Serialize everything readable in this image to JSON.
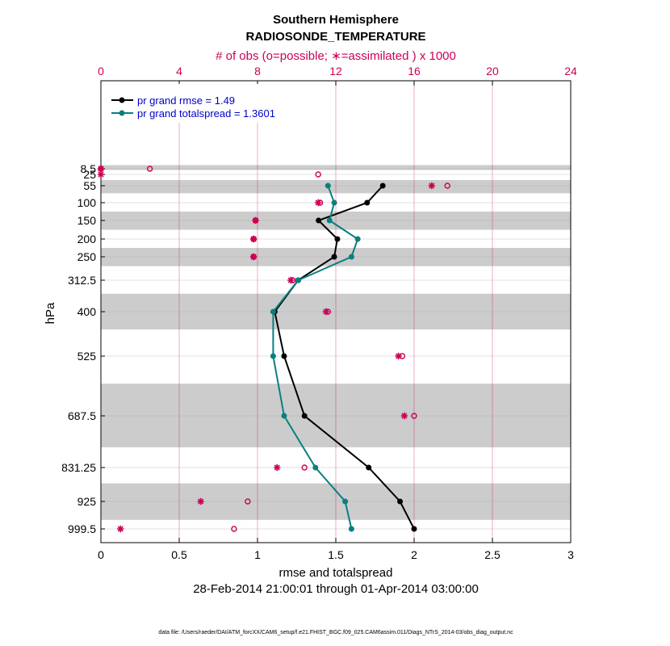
{
  "chart_data": {
    "type": "line",
    "title": "Southern Hemisphere",
    "subtitle": "RADIOSONDE_TEMPERATURE",
    "top_axis_label": "# of obs (o=possible; ∗=assimilated ) x 1000",
    "xlabel": "rmse and totalspread",
    "ylabel": "hPa",
    "date_range": "28-Feb-2014 21:00:01 through 01-Apr-2014 03:00:00",
    "footnote": "data file: /Users/raeder/DAI/ATM_forcXX/CAM6_setup/f.e21.FHIST_BGC.f09_025.CAM6assim.011/Diags_NTrS_2014-03/obs_diag_output.nc",
    "xlim": [
      0,
      3
    ],
    "xticks": [
      "0",
      "0.5",
      "1",
      "1.5",
      "2",
      "2.5",
      "3"
    ],
    "x2lim": [
      0,
      24
    ],
    "x2ticks": [
      "0",
      "4",
      "8",
      "12",
      "16",
      "20",
      "24"
    ],
    "levels": [
      {
        "label": "8.5",
        "value": 8.5
      },
      {
        "label": "25",
        "value": 25
      },
      {
        "label": "55",
        "value": 55
      },
      {
        "label": "100",
        "value": 100
      },
      {
        "label": "150",
        "value": 150
      },
      {
        "label": "200",
        "value": 200
      },
      {
        "label": "250",
        "value": 250
      },
      {
        "label": "312.5",
        "value": 312.5
      },
      {
        "label": "400",
        "value": 400
      },
      {
        "label": "525",
        "value": 525
      },
      {
        "label": "687.5",
        "value": 687.5
      },
      {
        "label": "831.25",
        "value": 831.25
      },
      {
        "label": "925",
        "value": 925
      },
      {
        "label": "999.5",
        "value": 999.5
      }
    ],
    "shaded_bands_hPa": [
      [
        5,
        12
      ],
      [
        40,
        75
      ],
      [
        125,
        175
      ],
      [
        225,
        275
      ],
      [
        350,
        450
      ],
      [
        600,
        775
      ],
      [
        875,
        975
      ]
    ],
    "legend": [
      {
        "label": "pr grand rmse = 1.49",
        "color": "#000000"
      },
      {
        "label": "pr grand totalspread = 1.3601",
        "color": "#0a7f7f"
      }
    ],
    "series": [
      {
        "name": "pr grand rmse",
        "color": "#000000",
        "points": [
          {
            "level": 55,
            "value": 1.8
          },
          {
            "level": 100,
            "value": 1.7
          },
          {
            "level": 150,
            "value": 1.39
          },
          {
            "level": 200,
            "value": 1.51
          },
          {
            "level": 250,
            "value": 1.49
          },
          {
            "level": 312.5,
            "value": 1.26
          },
          {
            "level": 400,
            "value": 1.11
          },
          {
            "level": 525,
            "value": 1.17
          },
          {
            "level": 687.5,
            "value": 1.3
          },
          {
            "level": 831.25,
            "value": 1.71
          },
          {
            "level": 925,
            "value": 1.91
          },
          {
            "level": 999.5,
            "value": 2.0
          }
        ]
      },
      {
        "name": "pr grand totalspread",
        "color": "#0a7f7f",
        "points": [
          {
            "level": 55,
            "value": 1.45
          },
          {
            "level": 100,
            "value": 1.49
          },
          {
            "level": 150,
            "value": 1.46
          },
          {
            "level": 200,
            "value": 1.64
          },
          {
            "level": 250,
            "value": 1.6
          },
          {
            "level": 312.5,
            "value": 1.26
          },
          {
            "level": 400,
            "value": 1.1
          },
          {
            "level": 525,
            "value": 1.1
          },
          {
            "level": 687.5,
            "value": 1.17
          },
          {
            "level": 831.25,
            "value": 1.37
          },
          {
            "level": 925,
            "value": 1.56
          },
          {
            "level": 999.5,
            "value": 1.6
          }
        ]
      }
    ],
    "obs_counts_thousands": [
      {
        "level": 8.5,
        "possible": 0.0,
        "assimilated": 0.0
      },
      {
        "level": 8.5,
        "possible": 2.5,
        "assimilated": null
      },
      {
        "level": 25,
        "possible": 11.1,
        "assimilated": 0.0
      },
      {
        "level": 55,
        "possible": 17.7,
        "assimilated": 16.9
      },
      {
        "level": 100,
        "possible": 11.2,
        "assimilated": 11.1
      },
      {
        "level": 150,
        "possible": 7.9,
        "assimilated": 7.9
      },
      {
        "level": 200,
        "possible": 7.8,
        "assimilated": 7.8
      },
      {
        "level": 250,
        "possible": 7.8,
        "assimilated": 7.8
      },
      {
        "level": 312.5,
        "possible": 9.8,
        "assimilated": 9.7
      },
      {
        "level": 400,
        "possible": 11.6,
        "assimilated": 11.5
      },
      {
        "level": 525,
        "possible": 15.4,
        "assimilated": 15.2
      },
      {
        "level": 687.5,
        "possible": 16.0,
        "assimilated": 15.5
      },
      {
        "level": 831.25,
        "possible": 10.4,
        "assimilated": 9.0
      },
      {
        "level": 925,
        "possible": 7.5,
        "assimilated": 5.1
      },
      {
        "level": 999.5,
        "possible": 6.8,
        "assimilated": 1.0
      }
    ],
    "colors": {
      "obs_marker": "#cc0055",
      "top_axis": "#cc0055",
      "vgrid": "#cc0055",
      "band": "#cccccc",
      "legend_text": "#0000cc"
    }
  }
}
